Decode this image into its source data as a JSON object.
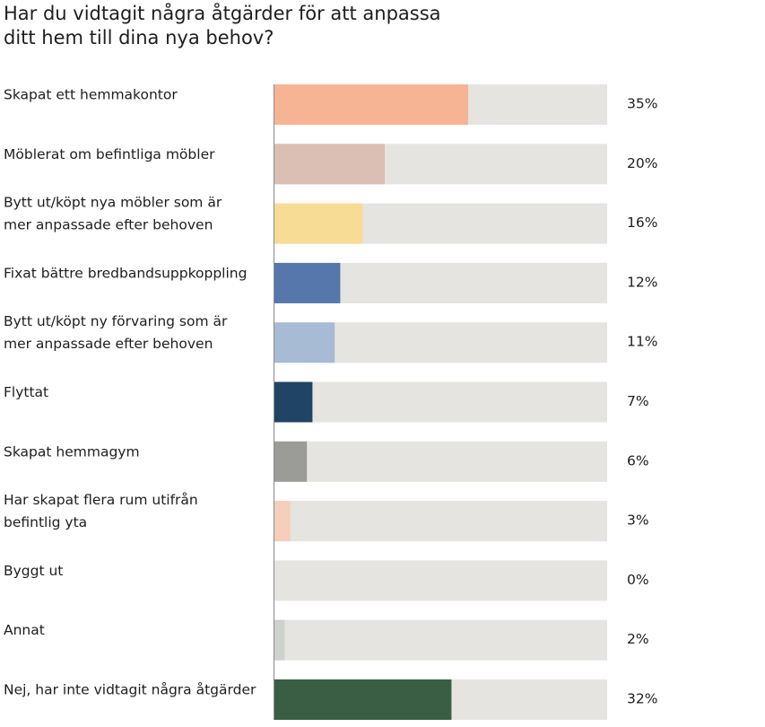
{
  "chart_data": {
    "type": "bar",
    "orientation": "horizontal",
    "title": "Har du vidtagit några åtgärder för att anpassa ditt hem till dina nya behov?",
    "title_lines": [
      "Har du vidtagit några åtgärder för att anpassa",
      "ditt hem till dina nya behov?"
    ],
    "categories": [
      [
        "Skapat ett hemmakontor"
      ],
      [
        "Möblerat om befintliga möbler"
      ],
      [
        "Bytt ut/köpt nya möbler som är",
        "mer anpassade efter behoven"
      ],
      [
        "Fixat bättre bredbandsuppkoppling"
      ],
      [
        "Bytt ut/köpt ny förvaring som är",
        "mer anpassade efter behoven"
      ],
      [
        "Flyttat"
      ],
      [
        "Skapat hemmagym"
      ],
      [
        "Har skapat flera rum utifrån",
        "befintlig yta"
      ],
      [
        "Byggt ut"
      ],
      [
        "Annat"
      ],
      [
        "Nej, har inte vidtagit några åtgärder"
      ]
    ],
    "values": [
      35,
      20,
      16,
      12,
      11,
      7,
      6,
      3,
      0,
      2,
      32
    ],
    "value_labels": [
      "35%",
      "20%",
      "16%",
      "12%",
      "11%",
      "7%",
      "6%",
      "3%",
      "0%",
      "2%",
      "32%"
    ],
    "colors": [
      "#f7b494",
      "#dbbfb4",
      "#f7dc95",
      "#5577ab",
      "#a8bbd4",
      "#1f4466",
      "#9b9b98",
      "#f6cebc",
      "#e5e4e0",
      "#cdd2cc",
      "#3a5e43"
    ],
    "track_color": "#e5e4e0",
    "xlim": [
      0,
      60
    ],
    "grid": false,
    "legend": "none"
  }
}
